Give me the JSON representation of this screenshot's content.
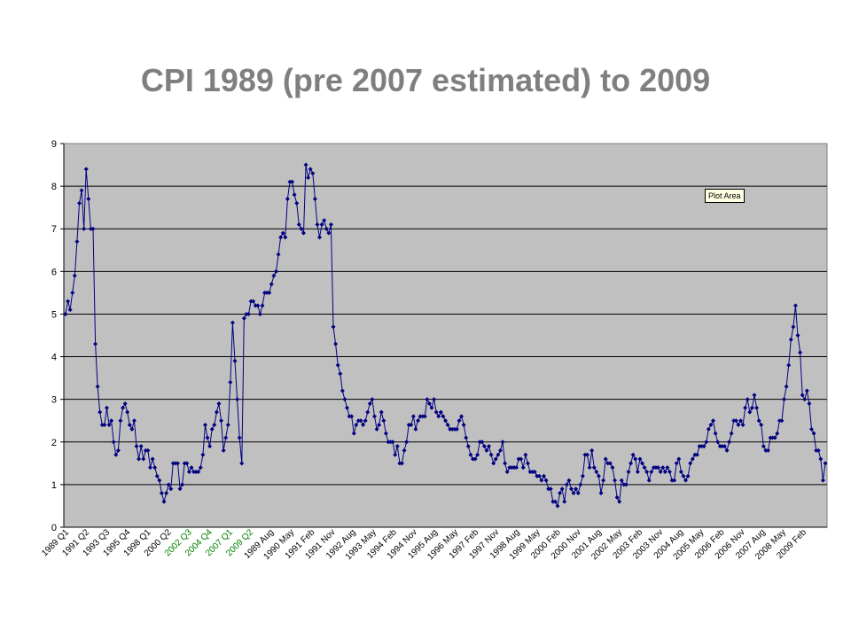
{
  "title": "CPI 1989 (pre 2007 estimated) to 2009",
  "tooltip": "Plot Area",
  "colors": {
    "line": "#000080",
    "plot_bg": "#c0c0c0",
    "grid": "#000000",
    "title": "#7f7f7f"
  },
  "chart_data": {
    "type": "line",
    "title": "CPI 1989 (pre 2007 estimated) to 2009",
    "xlabel": "",
    "ylabel": "",
    "ylim": [
      0,
      9
    ],
    "yticks": [
      0,
      1,
      2,
      3,
      4,
      5,
      6,
      7,
      8,
      9
    ],
    "grid": "horizontal",
    "x_tick_labels": [
      "1989 Q1",
      "1991 Q2",
      "1993 Q3",
      "1995 Q4",
      "1998 Q1",
      "2000 Q2",
      "2002 Q3",
      "2004 Q4",
      "2007 Q1",
      "2009 Q2",
      "1989 Aug",
      "1990 May",
      "1991 Feb",
      "1991 Nov",
      "1992 Aug",
      "1993 May",
      "1994 Feb",
      "1994 Nov",
      "1995 Aug",
      "1996 May",
      "1997 Feb",
      "1997 Nov",
      "1998 Aug",
      "1999 May",
      "2000 Feb",
      "2000 Nov",
      "2001 Aug",
      "2002 May",
      "2003 Feb",
      "2003 Nov",
      "2004 Aug",
      "2005 May",
      "2006 Feb",
      "2006 Nov",
      "2007 Aug",
      "2008 May",
      "2009 Feb"
    ],
    "x_tick_colors": [
      "#000000",
      "#000000",
      "#000000",
      "#000000",
      "#000000",
      "#000000",
      "#008000",
      "#008000",
      "#008000",
      "#008000",
      "#000000",
      "#000000",
      "#000000",
      "#000000",
      "#000000",
      "#000000",
      "#000000",
      "#000000",
      "#000000",
      "#000000",
      "#000000",
      "#000000",
      "#000000",
      "#000000",
      "#000000",
      "#000000",
      "#000000",
      "#000000",
      "#000000",
      "#000000",
      "#000000",
      "#000000",
      "#000000",
      "#000000",
      "#000000",
      "#000000",
      "#000000"
    ],
    "series": [
      {
        "values": [
          5.0,
          5.3,
          5.1,
          5.5,
          5.9,
          6.7,
          7.6,
          7.9,
          7.0,
          8.4,
          7.7,
          7.0,
          7.0,
          4.3,
          3.3,
          2.7,
          2.4,
          2.4,
          2.8,
          2.4,
          2.5,
          2.0,
          1.7,
          1.8,
          2.5,
          2.8,
          2.9,
          2.7,
          2.4,
          2.3,
          2.5,
          1.9,
          1.6,
          1.9,
          1.6,
          1.8,
          1.8,
          1.4,
          1.6,
          1.4,
          1.2,
          1.1,
          0.8,
          0.6,
          0.8,
          1.0,
          0.9,
          1.5,
          1.5,
          1.5,
          0.9,
          1.0,
          1.5,
          1.5,
          1.3,
          1.4,
          1.3,
          1.3,
          1.3,
          1.4,
          1.7,
          2.4,
          2.1,
          1.9,
          2.3,
          2.4,
          2.7,
          2.9,
          2.5,
          1.8,
          2.1,
          2.4,
          3.4,
          4.8,
          3.9,
          3.0,
          2.1,
          1.5,
          4.9,
          5.0,
          5.0,
          5.3,
          5.3,
          5.2,
          5.2,
          5.0,
          5.2,
          5.5,
          5.5,
          5.5,
          5.7,
          5.9,
          6.0,
          6.4,
          6.8,
          6.9,
          6.8,
          7.7,
          8.1,
          8.1,
          7.8,
          7.6,
          7.1,
          7.0,
          6.9,
          8.5,
          8.2,
          8.4,
          8.3,
          7.7,
          7.1,
          6.8,
          7.1,
          7.2,
          7.0,
          6.9,
          7.1,
          4.7,
          4.3,
          3.8,
          3.6,
          3.2,
          3.0,
          2.8,
          2.6,
          2.6,
          2.2,
          2.4,
          2.5,
          2.5,
          2.4,
          2.5,
          2.7,
          2.9,
          3.0,
          2.6,
          2.3,
          2.4,
          2.7,
          2.5,
          2.2,
          2.0,
          2.0,
          2.0,
          1.7,
          1.9,
          1.5,
          1.5,
          1.8,
          2.0,
          2.4,
          2.4,
          2.6,
          2.3,
          2.5,
          2.6,
          2.6,
          2.6,
          3.0,
          2.9,
          2.8,
          3.0,
          2.7,
          2.6,
          2.7,
          2.6,
          2.5,
          2.4,
          2.3,
          2.3,
          2.3,
          2.3,
          2.5,
          2.6,
          2.4,
          2.1,
          1.9,
          1.7,
          1.6,
          1.6,
          1.7,
          2.0,
          2.0,
          1.9,
          1.8,
          1.9,
          1.7,
          1.5,
          1.6,
          1.7,
          1.8,
          2.0,
          1.5,
          1.3,
          1.4,
          1.4,
          1.4,
          1.4,
          1.6,
          1.6,
          1.4,
          1.7,
          1.5,
          1.3,
          1.3,
          1.3,
          1.2,
          1.2,
          1.1,
          1.2,
          1.1,
          0.9,
          0.9,
          0.6,
          0.6,
          0.5,
          0.8,
          0.9,
          0.6,
          1.0,
          1.1,
          0.9,
          0.8,
          0.9,
          0.8,
          1.0,
          1.2,
          1.7,
          1.7,
          1.4,
          1.8,
          1.4,
          1.3,
          1.2,
          0.8,
          1.1,
          1.6,
          1.5,
          1.5,
          1.4,
          1.1,
          0.7,
          0.6,
          1.1,
          1.0,
          1.0,
          1.3,
          1.5,
          1.7,
          1.6,
          1.3,
          1.6,
          1.5,
          1.4,
          1.3,
          1.1,
          1.3,
          1.4,
          1.4,
          1.4,
          1.3,
          1.4,
          1.3,
          1.4,
          1.3,
          1.1,
          1.1,
          1.5,
          1.6,
          1.3,
          1.2,
          1.1,
          1.2,
          1.5,
          1.6,
          1.7,
          1.7,
          1.9,
          1.9,
          1.9,
          2.0,
          2.3,
          2.4,
          2.5,
          2.2,
          2.0,
          1.9,
          1.9,
          1.9,
          1.8,
          2.0,
          2.2,
          2.5,
          2.5,
          2.4,
          2.5,
          2.4,
          2.8,
          3.0,
          2.7,
          2.8,
          3.1,
          2.8,
          2.5,
          2.4,
          1.9,
          1.8,
          1.8,
          2.1,
          2.1,
          2.1,
          2.2,
          2.5,
          2.5,
          3.0,
          3.3,
          3.8,
          4.4,
          4.7,
          5.2,
          4.5,
          4.1,
          3.1,
          3.0,
          3.2,
          2.9,
          2.3,
          2.2,
          1.8,
          1.8,
          1.6,
          1.1,
          1.5
        ]
      }
    ]
  }
}
